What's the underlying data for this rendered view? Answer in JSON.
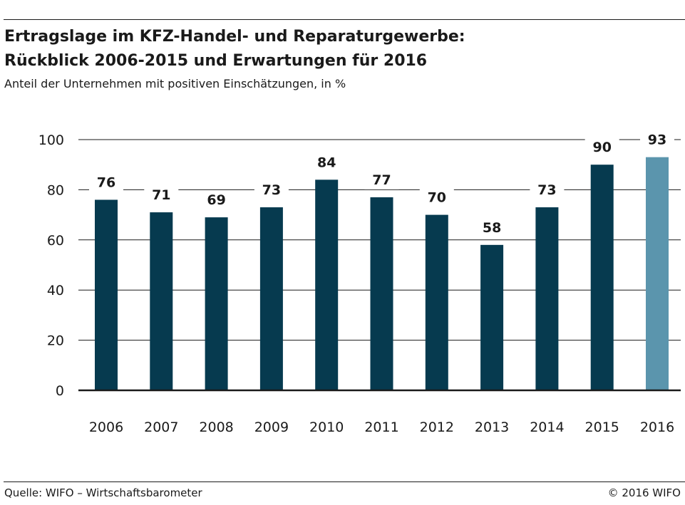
{
  "header": {
    "title_line1": "Ertragslage im KFZ-Handel- und Reparaturgewerbe:",
    "title_line2": "Rückblick 2006-2015 und Erwartungen für 2016",
    "subtitle": "Anteil der Unternehmen mit positiven Einschätzungen, in %"
  },
  "footer": {
    "source": "Quelle: WIFO – Wirtschaftsbarometer",
    "copyright": "© 2016 WIFO"
  },
  "colors": {
    "bar": "#063a4f",
    "bar_highlight": "#5b95ad",
    "text": "#1a1a1a",
    "grid": "#1a1a1a"
  },
  "chart_data": {
    "type": "bar",
    "title": "Ertragslage im KFZ-Handel- und Reparaturgewerbe: Rückblick 2006-2015 und Erwartungen für 2016",
    "subtitle": "Anteil der Unternehmen mit positiven Einschätzungen, in %",
    "categories": [
      "2006",
      "2007",
      "2008",
      "2009",
      "2010",
      "2011",
      "2012",
      "2013",
      "2014",
      "2015",
      "2016"
    ],
    "values": [
      76,
      71,
      69,
      73,
      84,
      77,
      70,
      58,
      73,
      90,
      93
    ],
    "highlight_category": "2016",
    "xlabel": "",
    "ylabel": "",
    "ylim": [
      0,
      100
    ],
    "yticks": [
      0,
      20,
      40,
      60,
      80,
      100
    ],
    "grid": true,
    "data_labels": true
  }
}
